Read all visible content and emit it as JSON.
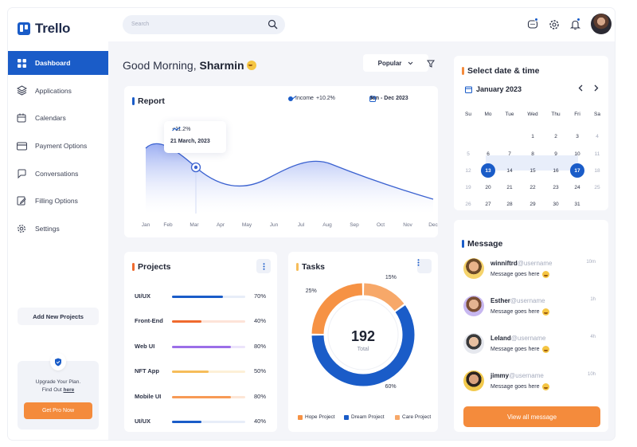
{
  "app": {
    "name": "Trello"
  },
  "sidebar": {
    "items": [
      {
        "label": "Dashboard",
        "icon": "grid-icon"
      },
      {
        "label": "Applications",
        "icon": "layers-icon"
      },
      {
        "label": "Calendars",
        "icon": "calendar-icon"
      },
      {
        "label": "Payment Options",
        "icon": "card-icon"
      },
      {
        "label": "Conversations",
        "icon": "chat-icon"
      },
      {
        "label": "Filling Options",
        "icon": "edit-icon"
      },
      {
        "label": "Settings",
        "icon": "gear-icon"
      }
    ],
    "active_index": 0,
    "add_projects_label": "Add New Projects",
    "upgrade": {
      "line1": "Upgrade Your Plan.",
      "line2_prefix": "Find Out ",
      "link": "here",
      "button": "Get Pro Now"
    }
  },
  "header": {
    "search_placeholder": "Search"
  },
  "greeting": {
    "prefix": "Good Morning, ",
    "name": "Sharmin"
  },
  "popular_label": "Popular",
  "report": {
    "title": "Report",
    "legend_label": "Income",
    "legend_change": "+10.2%",
    "date_range": "Jan - Dec 2023",
    "tooltip_change": "+11.2%",
    "tooltip_date": "21 March, 2023",
    "months": [
      "Jan",
      "Feb",
      "Mar",
      "Apr",
      "May",
      "Jun",
      "Jul",
      "Aug",
      "Sep",
      "Oct",
      "Nov",
      "Dec"
    ]
  },
  "projects": {
    "title": "Projects",
    "items": [
      {
        "name": "UI/UX",
        "percent": 70,
        "label": "70%",
        "color": "#1a5cc8",
        "track": "#e7edf8"
      },
      {
        "name": "Front-End",
        "percent": 40,
        "label": "40%",
        "color": "#ef6a2e",
        "track": "#fde3d8"
      },
      {
        "name": "Web UI",
        "percent": 80,
        "label": "80%",
        "color": "#9b6ee8",
        "track": "#ece4fb"
      },
      {
        "name": "NFT App",
        "percent": 50,
        "label": "50%",
        "color": "#f6bd5a",
        "track": "#fdf0d7"
      },
      {
        "name": "Mobile UI",
        "percent": 80,
        "label": "80%",
        "color": "#f79a55",
        "track": "#fde6d6"
      },
      {
        "name": "UI/UX",
        "percent": 40,
        "label": "40%",
        "color": "#1a5cc8",
        "track": "#e7edf8"
      }
    ]
  },
  "tasks": {
    "title": "Tasks",
    "total": "192",
    "total_label": "Total",
    "segments": [
      {
        "name": "Hope Project",
        "percent": 25,
        "label": "25%",
        "color": "#f69244"
      },
      {
        "name": "Dream Project",
        "percent": 60,
        "label": "60%",
        "color": "#1a5cc8"
      },
      {
        "name": "Care Project",
        "percent": 15,
        "label": "15%",
        "color": "#f7a869"
      }
    ]
  },
  "calendar": {
    "title": "Select date & time",
    "month": "January 2023",
    "weekdays": [
      "Su",
      "Mo",
      "Tue",
      "Wed",
      "Thu",
      "Fri",
      "Sa"
    ],
    "rows": [
      [
        "",
        "",
        "",
        "1",
        "2",
        "3",
        "4"
      ],
      [
        "5",
        "6",
        "7",
        "8",
        "9",
        "10",
        "11"
      ],
      [
        "12",
        "13",
        "14",
        "15",
        "16",
        "17",
        "18"
      ],
      [
        "19",
        "20",
        "21",
        "22",
        "23",
        "24",
        "25"
      ],
      [
        "26",
        "27",
        "28",
        "29",
        "30",
        "31",
        ""
      ]
    ],
    "selected": [
      "13",
      "17"
    ],
    "in_range": [
      "14",
      "15",
      "16"
    ]
  },
  "messages": {
    "title": "Message",
    "items": [
      {
        "name": "winniftrd",
        "user": "@username",
        "time": "10m",
        "text": "Message goes here"
      },
      {
        "name": "Esther",
        "user": "@username",
        "time": "1h",
        "text": "Message goes here"
      },
      {
        "name": "Leland",
        "user": "@username",
        "time": "4h",
        "text": "Message goes here"
      },
      {
        "name": "jimmy",
        "user": "@username",
        "time": "10h",
        "text": "Message goes here"
      }
    ],
    "view_all": "View all message"
  },
  "colors": {
    "primary": "#1a5cc8",
    "accent": "#f48b3c",
    "background": "#f4f5f9"
  }
}
